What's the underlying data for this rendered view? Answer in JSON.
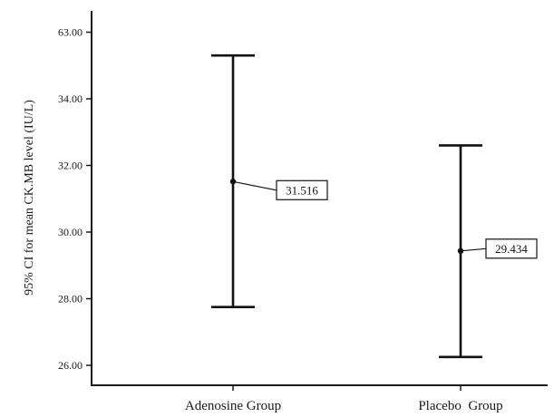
{
  "chart_data": {
    "type": "errorbar",
    "ylabel": "95% CI for mean CK.MB level (IU/L)",
    "categories": [
      "Adenosine Group",
      "Placebo  Group"
    ],
    "y_ticks": [
      "26.00",
      "28.00",
      "30.00",
      "32.00",
      "34.00",
      "63.00"
    ],
    "series": [
      {
        "points": [
          {
            "category": "Adenosine Group",
            "mean": 31.516,
            "lower": 27.75,
            "upper": 35.3,
            "label": "31.516"
          },
          {
            "category": "Placebo  Group",
            "mean": 29.434,
            "lower": 26.25,
            "upper": 32.6,
            "label": "29.434"
          }
        ]
      }
    ],
    "grid": false,
    "legend": "none"
  }
}
